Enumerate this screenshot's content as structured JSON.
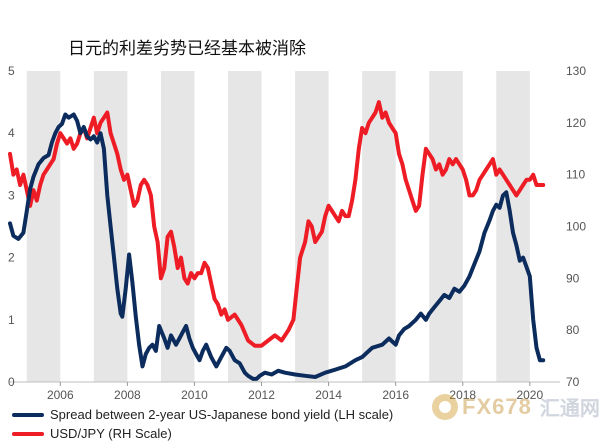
{
  "title": "日元的利差劣势已经基本被消除",
  "legend": [
    {
      "label": "Spread between 2-year US-Japanese bond yield (LH scale)",
      "color": "#0b2c5c"
    },
    {
      "label": "USD/JPY (RH Scale)",
      "color": "#ee1c25"
    }
  ],
  "watermark": {
    "brand": "FX678",
    "cn": "汇通网"
  },
  "colors": {
    "band": "#e6e6e6",
    "spread": "#0b2c5c",
    "usdjpy": "#ee1c25"
  },
  "chart_data": {
    "type": "line",
    "title": "日元的利差劣势已经基本被消除",
    "x_ticks": [
      "2006",
      "2008",
      "2010",
      "2012",
      "2014",
      "2016",
      "2018",
      "2020"
    ],
    "xlim": [
      2004.5,
      2020.9
    ],
    "y_left": {
      "ylim": [
        0,
        5
      ],
      "ticks": [
        "0",
        "1",
        "2",
        "3",
        "4",
        "5"
      ]
    },
    "y_right": {
      "ylim": [
        70,
        130
      ],
      "ticks": [
        "70",
        "80",
        "90",
        "100",
        "110",
        "120",
        "130"
      ]
    },
    "shaded_years": [
      [
        2005,
        2006
      ],
      [
        2007,
        2008
      ],
      [
        2009,
        2010
      ],
      [
        2011,
        2012
      ],
      [
        2013,
        2014
      ],
      [
        2015,
        2016
      ],
      [
        2017,
        2018
      ],
      [
        2019,
        2020
      ]
    ],
    "series": [
      {
        "name": "Spread between 2-year US-Japanese bond yield (LH scale)",
        "axis": "left",
        "x": [
          2004.5,
          2004.6,
          2004.75,
          2004.9,
          2005.0,
          2005.1,
          2005.2,
          2005.35,
          2005.5,
          2005.65,
          2005.75,
          2005.85,
          2005.95,
          2006.05,
          2006.15,
          2006.25,
          2006.4,
          2006.5,
          2006.6,
          2006.7,
          2006.8,
          2006.9,
          2007.0,
          2007.1,
          2007.2,
          2007.3,
          2007.4,
          2007.5,
          2007.6,
          2007.7,
          2007.8,
          2007.85,
          2007.95,
          2008.05,
          2008.15,
          2008.25,
          2008.35,
          2008.45,
          2008.55,
          2008.65,
          2008.75,
          2008.85,
          2008.95,
          2009.1,
          2009.2,
          2009.3,
          2009.45,
          2009.55,
          2009.65,
          2009.75,
          2009.85,
          2009.95,
          2010.05,
          2010.15,
          2010.25,
          2010.35,
          2010.5,
          2010.65,
          2010.8,
          2010.95,
          2011.05,
          2011.2,
          2011.35,
          2011.5,
          2011.6,
          2011.75,
          2011.85,
          2011.95,
          2012.1,
          2012.3,
          2012.5,
          2012.7,
          2013.0,
          2013.3,
          2013.6,
          2013.9,
          2014.2,
          2014.5,
          2014.8,
          2015.0,
          2015.3,
          2015.6,
          2015.8,
          2016.0,
          2016.1,
          2016.25,
          2016.4,
          2016.5,
          2016.6,
          2016.75,
          2016.9,
          2017.0,
          2017.15,
          2017.3,
          2017.45,
          2017.6,
          2017.75,
          2017.9,
          2018.05,
          2018.2,
          2018.35,
          2018.5,
          2018.65,
          2018.8,
          2018.9,
          2019.0,
          2019.1,
          2019.2,
          2019.3,
          2019.4,
          2019.5,
          2019.6,
          2019.7,
          2019.8,
          2019.9,
          2020.0,
          2020.1,
          2020.2,
          2020.3,
          2020.4
        ],
        "y": [
          2.55,
          2.35,
          2.3,
          2.4,
          2.75,
          3.1,
          3.3,
          3.5,
          3.6,
          3.65,
          3.85,
          4.0,
          4.1,
          4.15,
          4.3,
          4.25,
          4.3,
          4.2,
          4.0,
          4.1,
          3.95,
          3.9,
          3.95,
          3.85,
          4.0,
          3.75,
          3.0,
          2.5,
          2.0,
          1.5,
          1.1,
          1.05,
          1.5,
          2.05,
          1.6,
          1.05,
          0.6,
          0.25,
          0.45,
          0.55,
          0.6,
          0.5,
          0.9,
          0.7,
          0.55,
          0.75,
          0.6,
          0.7,
          0.8,
          0.9,
          0.7,
          0.55,
          0.45,
          0.35,
          0.5,
          0.6,
          0.4,
          0.25,
          0.4,
          0.55,
          0.5,
          0.35,
          0.3,
          0.15,
          0.1,
          0.05,
          0.05,
          0.1,
          0.15,
          0.12,
          0.18,
          0.15,
          0.12,
          0.1,
          0.08,
          0.15,
          0.2,
          0.25,
          0.35,
          0.4,
          0.55,
          0.6,
          0.7,
          0.6,
          0.75,
          0.85,
          0.9,
          0.95,
          1.0,
          1.1,
          1.0,
          1.1,
          1.2,
          1.3,
          1.4,
          1.35,
          1.5,
          1.45,
          1.55,
          1.7,
          1.9,
          2.1,
          2.4,
          2.6,
          2.75,
          2.85,
          2.8,
          3.0,
          3.05,
          2.75,
          2.4,
          2.2,
          1.95,
          2.0,
          1.85,
          1.7,
          1.0,
          0.55,
          0.35,
          0.35
        ]
      },
      {
        "name": "USD/JPY (RH Scale)",
        "axis": "right",
        "x": [
          2004.5,
          2004.6,
          2004.7,
          2004.8,
          2004.9,
          2005.0,
          2005.1,
          2005.2,
          2005.3,
          2005.4,
          2005.5,
          2005.6,
          2005.7,
          2005.8,
          2005.9,
          2006.0,
          2006.1,
          2006.2,
          2006.3,
          2006.4,
          2006.5,
          2006.6,
          2006.7,
          2006.8,
          2006.9,
          2007.0,
          2007.1,
          2007.2,
          2007.3,
          2007.4,
          2007.5,
          2007.6,
          2007.7,
          2007.8,
          2007.9,
          2008.0,
          2008.1,
          2008.2,
          2008.3,
          2008.4,
          2008.5,
          2008.6,
          2008.7,
          2008.8,
          2008.9,
          2009.0,
          2009.1,
          2009.2,
          2009.3,
          2009.4,
          2009.5,
          2009.6,
          2009.7,
          2009.8,
          2009.9,
          2010.0,
          2010.1,
          2010.2,
          2010.3,
          2010.4,
          2010.5,
          2010.6,
          2010.7,
          2010.8,
          2010.9,
          2011.0,
          2011.2,
          2011.4,
          2011.6,
          2011.8,
          2012.0,
          2012.2,
          2012.4,
          2012.6,
          2012.8,
          2012.95,
          2013.05,
          2013.15,
          2013.3,
          2013.4,
          2013.5,
          2013.6,
          2013.7,
          2013.8,
          2013.9,
          2014.0,
          2014.1,
          2014.2,
          2014.3,
          2014.4,
          2014.5,
          2014.6,
          2014.7,
          2014.8,
          2014.9,
          2015.0,
          2015.1,
          2015.2,
          2015.3,
          2015.4,
          2015.5,
          2015.6,
          2015.7,
          2015.8,
          2015.9,
          2016.0,
          2016.1,
          2016.2,
          2016.3,
          2016.4,
          2016.5,
          2016.6,
          2016.7,
          2016.8,
          2016.9,
          2017.0,
          2017.1,
          2017.2,
          2017.3,
          2017.4,
          2017.5,
          2017.6,
          2017.7,
          2017.8,
          2017.9,
          2018.0,
          2018.1,
          2018.2,
          2018.3,
          2018.4,
          2018.5,
          2018.6,
          2018.7,
          2018.8,
          2018.9,
          2019.0,
          2019.1,
          2019.2,
          2019.3,
          2019.4,
          2019.5,
          2019.6,
          2019.7,
          2019.8,
          2019.9,
          2020.0,
          2020.1,
          2020.2,
          2020.3,
          2020.4
        ],
        "y": [
          114,
          110,
          111,
          108,
          110,
          107,
          104,
          107,
          105,
          108,
          110,
          111,
          112,
          113,
          116,
          118,
          117,
          116,
          117,
          115,
          116,
          118,
          119,
          117,
          119,
          121,
          118,
          120,
          121,
          122,
          118,
          116,
          114,
          111,
          109,
          110,
          107,
          104,
          105,
          108,
          109,
          108,
          106,
          100,
          97,
          90,
          92,
          98,
          99,
          96,
          92,
          94,
          90,
          89,
          91,
          90,
          91,
          91,
          93,
          92,
          89,
          86,
          85,
          83,
          84,
          82,
          83,
          81,
          78,
          77,
          77,
          78,
          79,
          78,
          80,
          82,
          88,
          94,
          97,
          101,
          100,
          97,
          98,
          99,
          102,
          104,
          103,
          102,
          101,
          103,
          102,
          102,
          105,
          109,
          115,
          119,
          118,
          120,
          121,
          122,
          124,
          121,
          122,
          120,
          119,
          118,
          114,
          112,
          109,
          107,
          105,
          103,
          104,
          110,
          115,
          114,
          113,
          111,
          112,
          110,
          111,
          113,
          112,
          113,
          112,
          111,
          109,
          106,
          106,
          107,
          109,
          110,
          111,
          112,
          113,
          110,
          111,
          110,
          109,
          108,
          107,
          106,
          107,
          108,
          109,
          109,
          110,
          108,
          108,
          108
        ]
      }
    ]
  }
}
